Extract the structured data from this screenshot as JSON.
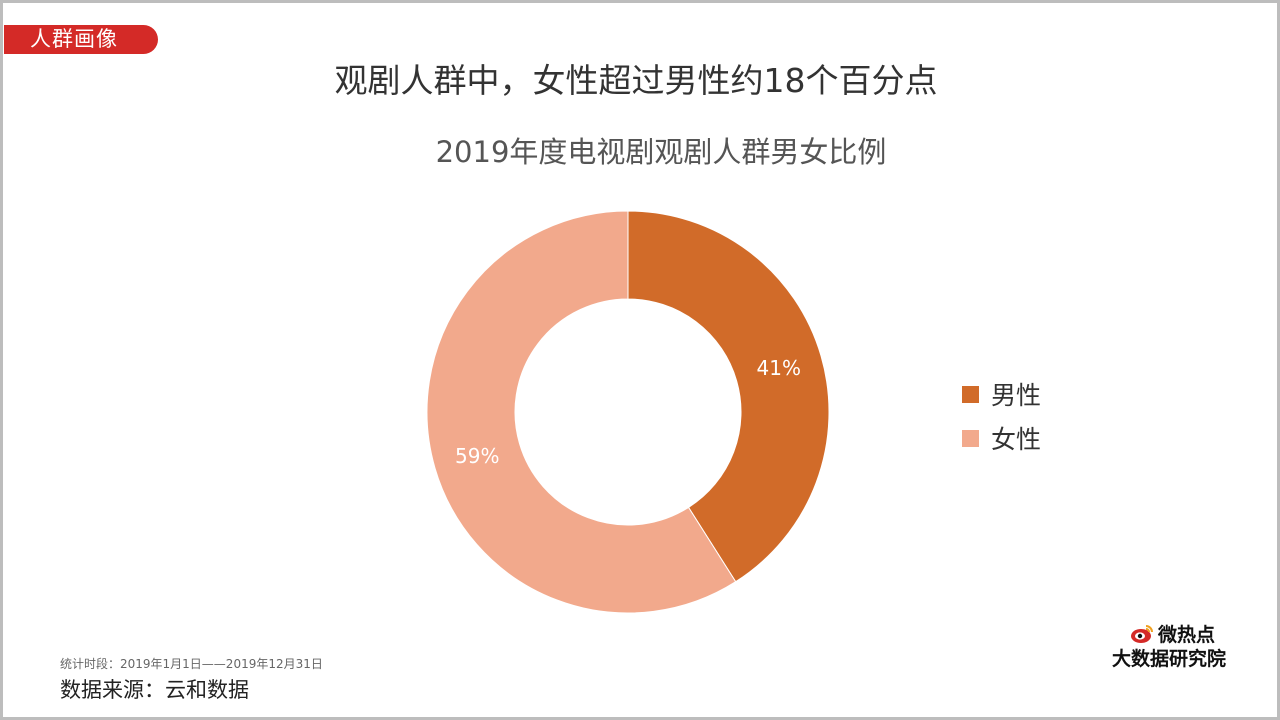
{
  "header": {
    "tag": "人群画像",
    "headline": "观剧人群中，女性超过男性约18个百分点"
  },
  "chart_data": {
    "type": "pie",
    "title": "2019年度电视剧观剧人群男女比例",
    "donut": true,
    "categories": [
      "男性",
      "女性"
    ],
    "values": [
      41,
      59
    ],
    "labels": [
      "41%",
      "59%"
    ],
    "colors": [
      "#d16b29",
      "#f2a98c"
    ],
    "legend_position": "right"
  },
  "footer": {
    "period": "统计时段：2019年1月1日——2019年12月31日",
    "source": "数据来源：云和数据"
  },
  "logo": {
    "line1": "微热点",
    "line2": "大数据研究院",
    "icon": "weibo-eye-icon"
  }
}
